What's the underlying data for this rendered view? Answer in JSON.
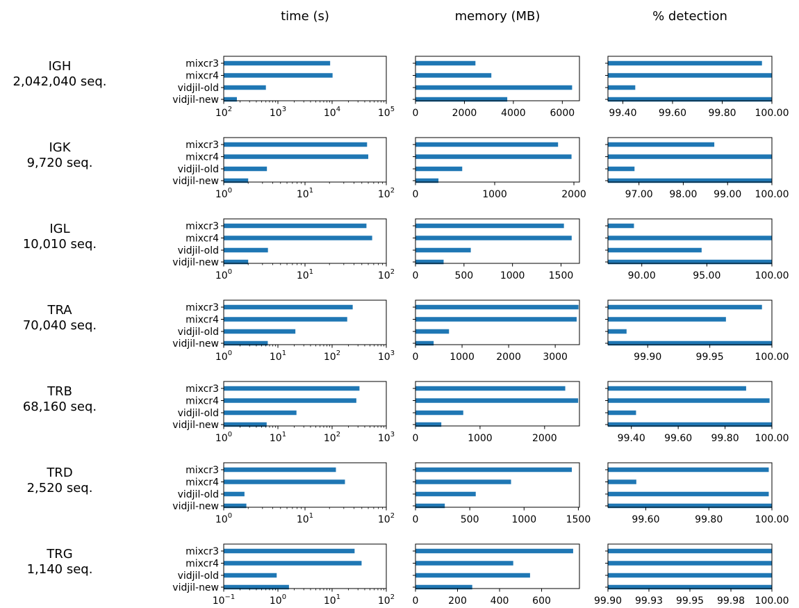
{
  "columns": [
    {
      "key": "time",
      "title": "time (s)"
    },
    {
      "key": "memory",
      "title": "memory (MB)"
    },
    {
      "key": "detection",
      "title": "% detection"
    }
  ],
  "tools": [
    "mixcr3",
    "mixcr4",
    "vidjil-old",
    "vidjil-new"
  ],
  "style": {
    "bar_color": "#1f77b4"
  },
  "chart_data": [
    {
      "type": "bar",
      "orientation": "horizontal",
      "title": "IGH",
      "subtitle": "2,042,040 seq.",
      "categories": [
        "mixcr3",
        "mixcr4",
        "vidjil-old",
        "vidjil-new"
      ],
      "panels": {
        "time": {
          "scale": "log",
          "xlim": [
            100,
            100000
          ],
          "ticks": [
            100,
            1000,
            10000,
            100000
          ],
          "tick_labels": [
            [
              "10",
              "2"
            ],
            [
              "10",
              "3"
            ],
            [
              "10",
              "4"
            ],
            [
              "10",
              "5"
            ]
          ],
          "values": [
            9200,
            10200,
            600,
            175
          ]
        },
        "memory": {
          "scale": "linear",
          "xlim": [
            0,
            6700
          ],
          "ticks": [
            0,
            2000,
            4000,
            6000
          ],
          "tick_labels": [
            "0",
            "2000",
            "4000",
            "6000"
          ],
          "values": [
            2450,
            3100,
            6400,
            3750
          ]
        },
        "detection": {
          "scale": "linear",
          "xlim": [
            99.34,
            100
          ],
          "ticks": [
            99.4,
            99.6,
            99.8,
            100
          ],
          "tick_labels": [
            "99.40",
            "99.60",
            "99.80",
            "100.00"
          ],
          "values": [
            99.96,
            100,
            99.45,
            100
          ]
        }
      }
    },
    {
      "type": "bar",
      "orientation": "horizontal",
      "title": "IGK",
      "subtitle": "9,720 seq.",
      "categories": [
        "mixcr3",
        "mixcr4",
        "vidjil-old",
        "vidjil-new"
      ],
      "panels": {
        "time": {
          "scale": "log",
          "xlim": [
            1,
            100
          ],
          "ticks": [
            1,
            10,
            100
          ],
          "tick_labels": [
            [
              "10",
              "0"
            ],
            [
              "10",
              "1"
            ],
            [
              "10",
              "2"
            ]
          ],
          "values": [
            58,
            60,
            3.4,
            2
          ]
        },
        "memory": {
          "scale": "linear",
          "xlim": [
            0,
            2070
          ],
          "ticks": [
            0,
            1000,
            2000
          ],
          "tick_labels": [
            "0",
            "1000",
            "2000"
          ],
          "values": [
            1800,
            1970,
            590,
            290
          ]
        },
        "detection": {
          "scale": "linear",
          "xlim": [
            96.3,
            100
          ],
          "ticks": [
            97,
            98,
            99,
            100
          ],
          "tick_labels": [
            "97.00",
            "98.00",
            "99.00",
            "100.00"
          ],
          "values": [
            98.7,
            100,
            96.9,
            100
          ]
        }
      }
    },
    {
      "type": "bar",
      "orientation": "horizontal",
      "title": "IGL",
      "subtitle": "10,010 seq.",
      "categories": [
        "mixcr3",
        "mixcr4",
        "vidjil-old",
        "vidjil-new"
      ],
      "panels": {
        "time": {
          "scale": "log",
          "xlim": [
            1,
            100
          ],
          "ticks": [
            1,
            10,
            100
          ],
          "tick_labels": [
            [
              "10",
              "0"
            ],
            [
              "10",
              "1"
            ],
            [
              "10",
              "2"
            ]
          ],
          "values": [
            57,
            67,
            3.5,
            2
          ]
        },
        "memory": {
          "scale": "linear",
          "xlim": [
            0,
            1690
          ],
          "ticks": [
            0,
            500,
            1000,
            1500
          ],
          "tick_labels": [
            "0",
            "500",
            "1000",
            "1500"
          ],
          "values": [
            1530,
            1610,
            570,
            290
          ]
        },
        "detection": {
          "scale": "linear",
          "xlim": [
            87.4,
            100
          ],
          "ticks": [
            90,
            95,
            100
          ],
          "tick_labels": [
            "90.00",
            "95.00",
            "100.00"
          ],
          "values": [
            89.4,
            100,
            94.6,
            100
          ]
        }
      }
    },
    {
      "type": "bar",
      "orientation": "horizontal",
      "title": "TRA",
      "subtitle": "70,040 seq.",
      "categories": [
        "mixcr3",
        "mixcr4",
        "vidjil-old",
        "vidjil-new"
      ],
      "panels": {
        "time": {
          "scale": "log",
          "xlim": [
            1,
            1000
          ],
          "ticks": [
            1,
            10,
            100,
            1000
          ],
          "tick_labels": [
            [
              "10",
              "0"
            ],
            [
              "10",
              "1"
            ],
            [
              "10",
              "2"
            ],
            [
              "10",
              "3"
            ]
          ],
          "values": [
            240,
            190,
            21,
            6.5
          ]
        },
        "memory": {
          "scale": "linear",
          "xlim": [
            0,
            3520
          ],
          "ticks": [
            0,
            1000,
            2000,
            3000
          ],
          "tick_labels": [
            "0",
            "1000",
            "2000",
            "3000"
          ],
          "values": [
            3500,
            3460,
            720,
            390
          ]
        },
        "detection": {
          "scale": "linear",
          "xlim": [
            99.868,
            100
          ],
          "ticks": [
            99.9,
            99.95,
            100
          ],
          "tick_labels": [
            "99.90",
            "99.95",
            "100.00"
          ],
          "values": [
            99.992,
            99.963,
            99.883,
            100
          ]
        }
      }
    },
    {
      "type": "bar",
      "orientation": "horizontal",
      "title": "TRB",
      "subtitle": "68,160 seq.",
      "categories": [
        "mixcr3",
        "mixcr4",
        "vidjil-old",
        "vidjil-new"
      ],
      "panels": {
        "time": {
          "scale": "log",
          "xlim": [
            1,
            1000
          ],
          "ticks": [
            1,
            10,
            100,
            1000
          ],
          "tick_labels": [
            [
              "10",
              "0"
            ],
            [
              "10",
              "1"
            ],
            [
              "10",
              "2"
            ],
            [
              "10",
              "3"
            ]
          ],
          "values": [
            320,
            280,
            22,
            6.2
          ]
        },
        "memory": {
          "scale": "linear",
          "xlim": [
            0,
            2540
          ],
          "ticks": [
            0,
            1000,
            2000
          ],
          "tick_labels": [
            "0",
            "1000",
            "2000"
          ],
          "values": [
            2320,
            2520,
            740,
            400
          ]
        },
        "detection": {
          "scale": "linear",
          "xlim": [
            99.3,
            100
          ],
          "ticks": [
            99.4,
            99.6,
            99.8,
            100
          ],
          "tick_labels": [
            "99.40",
            "99.60",
            "99.80",
            "100.00"
          ],
          "values": [
            99.89,
            99.99,
            99.42,
            100
          ]
        }
      }
    },
    {
      "type": "bar",
      "orientation": "horizontal",
      "title": "TRD",
      "subtitle": "2,520 seq.",
      "categories": [
        "mixcr3",
        "mixcr4",
        "vidjil-old",
        "vidjil-new"
      ],
      "panels": {
        "time": {
          "scale": "log",
          "xlim": [
            1,
            100
          ],
          "ticks": [
            1,
            10,
            100
          ],
          "tick_labels": [
            [
              "10",
              "0"
            ],
            [
              "10",
              "1"
            ],
            [
              "10",
              "2"
            ]
          ],
          "values": [
            24,
            31,
            1.8,
            1.9
          ]
        },
        "memory": {
          "scale": "linear",
          "xlim": [
            0,
            1510
          ],
          "ticks": [
            0,
            500,
            1000,
            1500
          ],
          "tick_labels": [
            "0",
            "500",
            "1000",
            "1500"
          ],
          "values": [
            1440,
            880,
            555,
            270
          ]
        },
        "detection": {
          "scale": "linear",
          "xlim": [
            99.48,
            100
          ],
          "ticks": [
            99.6,
            99.8,
            100
          ],
          "tick_labels": [
            "99.60",
            "99.80",
            "100.00"
          ],
          "values": [
            99.99,
            99.57,
            99.99,
            100
          ]
        }
      }
    },
    {
      "type": "bar",
      "orientation": "horizontal",
      "title": "TRG",
      "subtitle": "1,140 seq.",
      "categories": [
        "mixcr3",
        "mixcr4",
        "vidjil-old",
        "vidjil-new"
      ],
      "panels": {
        "time": {
          "scale": "log",
          "xlim": [
            0.1,
            100
          ],
          "ticks": [
            0.1,
            1,
            10,
            100
          ],
          "tick_labels": [
            [
              "10",
              "−1"
            ],
            [
              "10",
              "0"
            ],
            [
              "10",
              "1"
            ],
            [
              "10",
              "2"
            ]
          ],
          "values": [
            26,
            35,
            0.95,
            1.6
          ]
        },
        "memory": {
          "scale": "linear",
          "xlim": [
            0,
            780
          ],
          "ticks": [
            0,
            200,
            400,
            600
          ],
          "tick_labels": [
            "0",
            "200",
            "400",
            "600"
          ],
          "values": [
            750,
            465,
            545,
            270
          ]
        },
        "detection": {
          "scale": "linear",
          "xlim": [
            99.9,
            100
          ],
          "ticks": [
            99.9,
            99.925,
            99.95,
            99.975,
            100
          ],
          "tick_labels": [
            "99.90",
            "99.93",
            "99.95",
            "99.98",
            "100.00"
          ],
          "values": [
            100,
            100,
            100,
            100
          ]
        }
      }
    }
  ]
}
